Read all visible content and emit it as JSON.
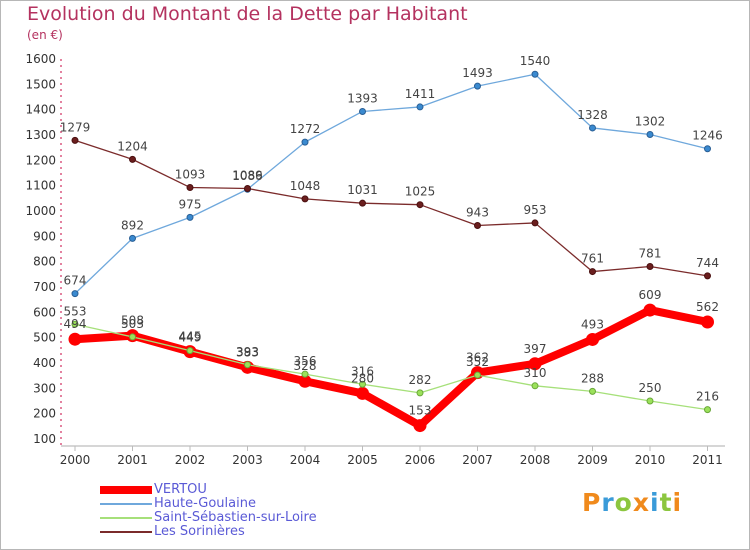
{
  "header": {
    "title": "Evolution du Montant de la Dette par Habitant",
    "subtitle": "(en €)"
  },
  "brand": {
    "text": "Proxiti",
    "colors": [
      "#f08a1c",
      "#3a9bd9",
      "#8cc63f",
      "#f08a1c",
      "#3a9bd9",
      "#8cc63f",
      "#f08a1c"
    ]
  },
  "chart_data": {
    "type": "line",
    "title": "Evolution du Montant de la Dette par Habitant",
    "subtitle": "(en €)",
    "xlabel": "",
    "ylabel": "",
    "categories": [
      "2000",
      "2001",
      "2002",
      "2003",
      "2004",
      "2005",
      "2006",
      "2007",
      "2008",
      "2009",
      "2010",
      "2011"
    ],
    "ylim": [
      100,
      1600
    ],
    "yticks": [
      100,
      200,
      300,
      400,
      500,
      600,
      700,
      800,
      900,
      1000,
      1100,
      1200,
      1300,
      1400,
      1500,
      1600
    ],
    "grid": false,
    "legend": "bottom-left",
    "series": [
      {
        "name": "VERTOU",
        "color": "#ff0000",
        "values": [
          494,
          508,
          445,
          383,
          328,
          280,
          153,
          362,
          397,
          493,
          609,
          562
        ]
      },
      {
        "name": "Haute-Goulaine",
        "color": "#6fa8dc",
        "values": [
          674,
          892,
          975,
          1086,
          1272,
          1393,
          1411,
          1493,
          1540,
          1328,
          1302,
          1246
        ]
      },
      {
        "name": "Saint-Sébastien-sur-Loire",
        "color": "#a6e07a",
        "values": [
          553,
          503,
          449,
          393,
          356,
          316,
          282,
          352,
          310,
          288,
          250,
          216
        ]
      },
      {
        "name": "Les Sorinières",
        "color": "#7b2b2b",
        "values": [
          1279,
          1204,
          1093,
          1089,
          1048,
          1031,
          1025,
          943,
          953,
          761,
          781,
          744
        ]
      }
    ]
  }
}
